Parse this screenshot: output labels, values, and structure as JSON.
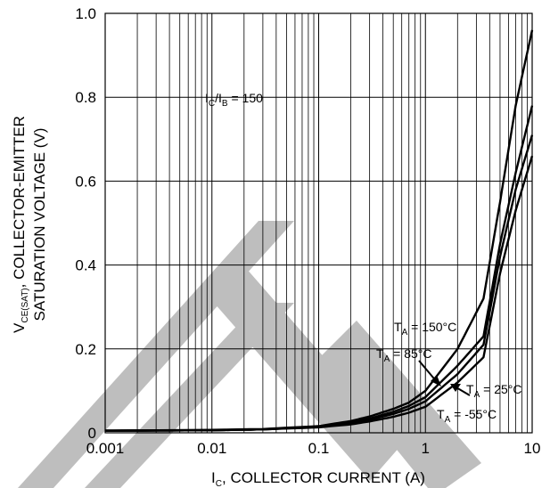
{
  "chart_data": {
    "type": "line",
    "xscale": "log",
    "xlim": [
      0.001,
      10
    ],
    "ylim": [
      0,
      1.0
    ],
    "grid": true,
    "x_ticks": [
      "0.001",
      "0.01",
      "0.1",
      "1",
      "10"
    ],
    "y_ticks": [
      "0",
      "0.2",
      "0.4",
      "0.6",
      "0.8",
      "1.0"
    ],
    "xlabel": {
      "main": "I",
      "sub": "C",
      "rest": ", COLLECTOR CURRENT (A)"
    },
    "ylabel": {
      "line1_main": "V",
      "line1_sub": "CE(SAT)",
      "line1_rest": ", COLLECTOR-EMITTER",
      "line2": "SATURATION VOLTAGE (V)"
    },
    "condition": {
      "a": "I",
      "a_sub": "C",
      "mid": "/I",
      "b_sub": "B",
      "rest": " = 150"
    },
    "series": [
      {
        "name": "T_A = 150°C",
        "x": [
          0.001,
          0.01,
          0.03,
          0.1,
          0.2,
          0.3,
          0.5,
          0.7,
          1.0,
          2.0,
          3.5,
          5.0,
          7.0,
          10.0
        ],
        "y": [
          0.005,
          0.006,
          0.008,
          0.015,
          0.025,
          0.034,
          0.05,
          0.064,
          0.085,
          0.16,
          0.23,
          0.45,
          0.62,
          0.78
        ]
      },
      {
        "name": "T_A = 85°C",
        "x": [
          0.001,
          0.01,
          0.03,
          0.1,
          0.2,
          0.3,
          0.5,
          0.7,
          1.0,
          2.0,
          3.5,
          5.0,
          7.0,
          10.0
        ],
        "y": [
          0.005,
          0.006,
          0.008,
          0.014,
          0.023,
          0.031,
          0.045,
          0.057,
          0.075,
          0.14,
          0.21,
          0.42,
          0.58,
          0.71
        ]
      },
      {
        "name": "T_A = 25°C",
        "x": [
          0.001,
          0.01,
          0.03,
          0.1,
          0.2,
          0.3,
          0.5,
          0.7,
          1.0,
          2.0,
          3.5,
          5.0,
          7.0,
          10.0
        ],
        "y": [
          0.005,
          0.006,
          0.008,
          0.013,
          0.02,
          0.027,
          0.038,
          0.048,
          0.062,
          0.12,
          0.18,
          0.38,
          0.53,
          0.66
        ]
      },
      {
        "name": "T_A = -55°C",
        "x": [
          0.001,
          0.01,
          0.03,
          0.1,
          0.2,
          0.3,
          0.5,
          0.7,
          1.0,
          2.0,
          3.5,
          5.0,
          7.0,
          10.0
        ],
        "y": [
          0.005,
          0.007,
          0.009,
          0.016,
          0.028,
          0.039,
          0.057,
          0.072,
          0.1,
          0.2,
          0.32,
          0.55,
          0.78,
          0.96
        ]
      }
    ],
    "annotations": [
      {
        "main": "T",
        "sub": "A",
        "rest": " = 150°C"
      },
      {
        "main": "T",
        "sub": "A",
        "rest": " = 85°C"
      },
      {
        "main": "T",
        "sub": "A",
        "rest": " = 25°C"
      },
      {
        "main": "T",
        "sub": "A",
        "rest": " = -55°C"
      }
    ],
    "colors": {
      "line": "#000000",
      "grid": "#000000",
      "watermark": "#b3b3b3"
    }
  }
}
